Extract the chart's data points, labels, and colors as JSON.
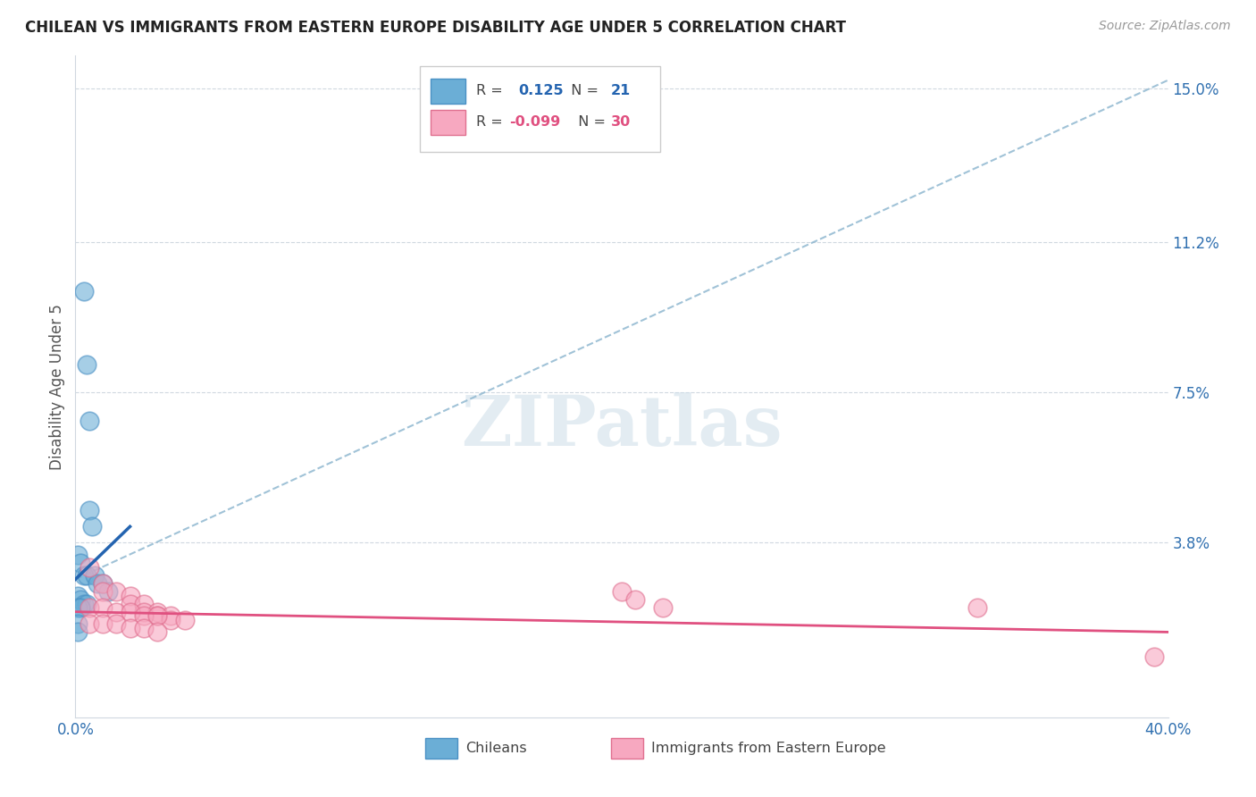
{
  "title": "CHILEAN VS IMMIGRANTS FROM EASTERN EUROPE DISABILITY AGE UNDER 5 CORRELATION CHART",
  "source": "Source: ZipAtlas.com",
  "ylabel": "Disability Age Under 5",
  "xlim": [
    0.0,
    0.4
  ],
  "ylim": [
    -0.005,
    0.158
  ],
  "xticks": [
    0.0,
    0.1,
    0.2,
    0.3,
    0.4
  ],
  "xtick_labels": [
    "0.0%",
    "",
    "",
    "",
    "40.0%"
  ],
  "yticks_right": [
    0.038,
    0.075,
    0.112,
    0.15
  ],
  "ytick_labels_right": [
    "3.8%",
    "7.5%",
    "11.2%",
    "15.0%"
  ],
  "chilean_color": "#6baed6",
  "chilean_edge": "#4a90c4",
  "immigrant_color": "#f7a8c0",
  "immigrant_edge": "#e07090",
  "trend_blue_color": "#2464b0",
  "trend_pink_color": "#e05080",
  "trend_gray_color": "#90b8d0",
  "chilean_points": [
    [
      0.003,
      0.1
    ],
    [
      0.004,
      0.082
    ],
    [
      0.005,
      0.068
    ],
    [
      0.005,
      0.046
    ],
    [
      0.006,
      0.042
    ],
    [
      0.001,
      0.035
    ],
    [
      0.002,
      0.033
    ],
    [
      0.003,
      0.03
    ],
    [
      0.004,
      0.03
    ],
    [
      0.007,
      0.03
    ],
    [
      0.008,
      0.028
    ],
    [
      0.01,
      0.028
    ],
    [
      0.012,
      0.026
    ],
    [
      0.001,
      0.025
    ],
    [
      0.002,
      0.024
    ],
    [
      0.003,
      0.023
    ],
    [
      0.004,
      0.023
    ],
    [
      0.001,
      0.022
    ],
    [
      0.002,
      0.022
    ],
    [
      0.001,
      0.018
    ],
    [
      0.001,
      0.016
    ]
  ],
  "immigrant_points": [
    [
      0.005,
      0.032
    ],
    [
      0.01,
      0.028
    ],
    [
      0.01,
      0.026
    ],
    [
      0.015,
      0.026
    ],
    [
      0.02,
      0.025
    ],
    [
      0.02,
      0.023
    ],
    [
      0.025,
      0.023
    ],
    [
      0.025,
      0.021
    ],
    [
      0.03,
      0.021
    ],
    [
      0.03,
      0.02
    ],
    [
      0.035,
      0.02
    ],
    [
      0.035,
      0.019
    ],
    [
      0.04,
      0.019
    ],
    [
      0.005,
      0.022
    ],
    [
      0.01,
      0.022
    ],
    [
      0.015,
      0.021
    ],
    [
      0.02,
      0.021
    ],
    [
      0.025,
      0.02
    ],
    [
      0.03,
      0.02
    ],
    [
      0.005,
      0.018
    ],
    [
      0.01,
      0.018
    ],
    [
      0.015,
      0.018
    ],
    [
      0.02,
      0.017
    ],
    [
      0.025,
      0.017
    ],
    [
      0.03,
      0.016
    ],
    [
      0.2,
      0.026
    ],
    [
      0.205,
      0.024
    ],
    [
      0.215,
      0.022
    ],
    [
      0.33,
      0.022
    ],
    [
      0.395,
      0.01
    ]
  ],
  "blue_trend_x": [
    0.0,
    0.02
  ],
  "blue_trend_y": [
    0.029,
    0.042
  ],
  "gray_trend_x": [
    0.0,
    0.4
  ],
  "gray_trend_y": [
    0.029,
    0.152
  ],
  "pink_trend_x": [
    0.0,
    0.4
  ],
  "pink_trend_y": [
    0.021,
    0.016
  ],
  "watermark": "ZIPatlas",
  "figsize": [
    14.06,
    8.92
  ],
  "dpi": 100
}
